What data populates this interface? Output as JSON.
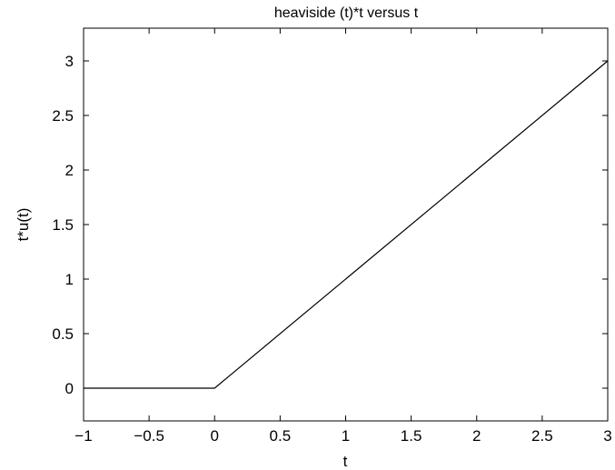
{
  "chart_data": {
    "type": "line",
    "title": "heaviside (t)*t versus t",
    "xlabel": "t",
    "ylabel": "t*u(t)",
    "xlim": [
      -1,
      3
    ],
    "ylim": [
      -0.3,
      3.3
    ],
    "xticks": [
      -1,
      -0.5,
      0,
      0.5,
      1,
      1.5,
      2,
      2.5,
      3
    ],
    "xtick_labels": [
      "−1",
      "−0.5",
      "0",
      "0.5",
      "1",
      "1.5",
      "2",
      "2.5",
      "3"
    ],
    "yticks": [
      0,
      0.5,
      1,
      1.5,
      2,
      2.5,
      3
    ],
    "ytick_labels": [
      "0",
      "0.5",
      "1",
      "1.5",
      "2",
      "2.5",
      "3"
    ],
    "grid": false,
    "legend": "none",
    "line_color": "#000000",
    "series": [
      {
        "x": [
          -1,
          0,
          3
        ],
        "y": [
          0,
          0,
          3
        ]
      }
    ]
  }
}
